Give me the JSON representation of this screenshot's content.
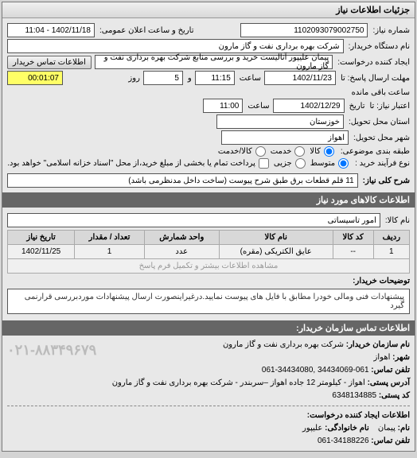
{
  "panel": {
    "title": "جزئیات اطلاعات نیاز"
  },
  "header": {
    "reqno_label": "شماره نیاز:",
    "reqno": "1102093079002750",
    "pubdate_label": "تاریخ و ساعت اعلان عمومی:",
    "pubdate": "1402/11/18 - 11:04",
    "buyer_label": "نام دستگاه خریدار:",
    "buyer": "شرکت بهره برداری نفت و گاز مارون",
    "creator_label": "ایجاد کننده درخواست:",
    "creator": "پیمان علیپور آنالیست خرید و بررسی منابع شرکت بهره برداری نفت و گاز مارون",
    "contact_btn": "اطلاعات تماس خریدار",
    "deadline_reply_from_label": "مهلت ارسال پاسخ: تا",
    "deadline_reply_from_date": "1402/11/23",
    "deadline_reply_from_time_lbl": "ساعت",
    "deadline_reply_from_time": "11:15",
    "days_lbl": "و",
    "days_val": "5",
    "days_after": "روز",
    "remain_lbl": "ساعت باقی مانده",
    "remain_val": "00:01:07",
    "valid_to_label": "اعتبار نیاز: تا",
    "valid_to_date_lbl": "تاریخ",
    "valid_to_date": "1402/12/29",
    "valid_to_time_lbl": "ساعت",
    "valid_to_time": "11:00",
    "province_label": "استان محل تحویل:",
    "province": "خوزستان",
    "city_label": "شهر محل تحویل:",
    "city": "اهواز",
    "class_label": "طبقه بندی موضوعی:",
    "class_goods": "کالا",
    "class_service": "خدمت",
    "class_goods_service": "کالا/خدمت",
    "purchase_type_label": "نوع فرآیند خرید :",
    "purchase_mid": "متوسط",
    "purchase_small": "جزیی",
    "purchase_note": "پرداخت تمام یا بخشی از مبلغ خرید،از محل \"اسناد خزانه اسلامی\" خواهد بود.",
    "title_label": "شرح کلی نیاز:",
    "title": "11 قلم قطعات برق طبق شرح پیوست (ساخت داخل مدنظرمی باشد)"
  },
  "goodsHeader": "اطلاعات کالاهای مورد نیاز",
  "goodsName": {
    "label": "نام کالا:",
    "value": "امور تاسیساتی"
  },
  "table": {
    "cols": [
      "ردیف",
      "کد کالا",
      "نام کالا",
      "واحد شمارش",
      "تعداد / مقدار",
      "تاریخ نیاز"
    ],
    "rows": [
      [
        "1",
        "--",
        "عایق الکتریکی (مقره)",
        "عدد",
        "1",
        "1402/11/25"
      ]
    ],
    "faded_text": "مشاهده اطلاعات بیشتر و تکمیل فرم پاسخ"
  },
  "buyerNote": {
    "label": "توضیحات خریدار:",
    "text": "پیشنهادات فنی ومالی خودرا مطابق با فایل های پیوست نمایید.درغیراینصورت ارسال پیشنهادات موردبررسی قرارنمی گیرد"
  },
  "contact": {
    "header": "اطلاعات تماس سازمان خریدار:",
    "org_label": "نام سازمان خریدار:",
    "org": "شرکت بهره برداری نفت و گاز مارون",
    "city_label": "شهر:",
    "city": "اهواز",
    "tel_label": "تلفن تماس:",
    "tel": "061-34434069 ,34434080-061",
    "addr_label": "آدرس پستی:",
    "addr": "اهواز - کیلومتر 12 جاده اهواز –سربندر - شرکت بهره برداری نفت و گاز مارون",
    "postal_label": "کد پستی:",
    "postal": "6348134885",
    "creator_header": "اطلاعات ایجاد کننده درخواست:",
    "name_label": "نام:",
    "name": "پیمان",
    "family_label": "نام خانوادگی:",
    "family": "علیپور",
    "phone_label": "تلفن تماس:",
    "phone": "34188226-061",
    "watermark": "۰۲۱-۸۸۳۴۹۶۷۹"
  }
}
